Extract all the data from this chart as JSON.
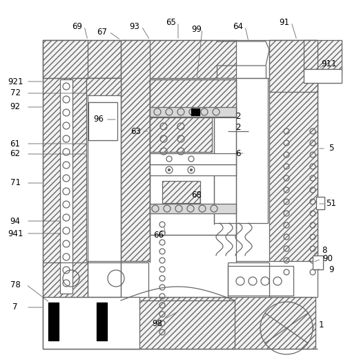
{
  "fig_width": 5.07,
  "fig_height": 5.27,
  "dpi": 100,
  "line_color": "#666666",
  "bg_color": "#ffffff"
}
